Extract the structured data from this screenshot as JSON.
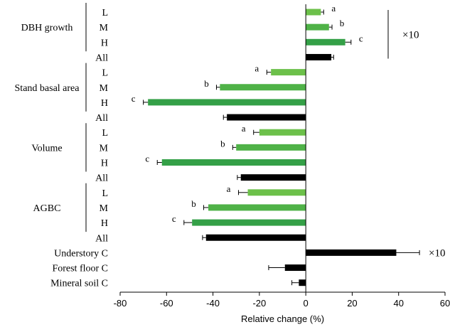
{
  "chart_data": {
    "type": "bar",
    "orientation": "horizontal",
    "xlabel": "Relative change (%)",
    "xlim": [
      -80,
      60
    ],
    "xticks": [
      -80,
      -60,
      -40,
      -20,
      0,
      20,
      40,
      60
    ],
    "groups": [
      {
        "label": "DBH growth",
        "rows": [
          0,
          1,
          2
        ]
      },
      {
        "label": "Stand basal area",
        "rows": [
          4,
          5,
          6
        ]
      },
      {
        "label": "Volume",
        "rows": [
          8,
          9,
          10
        ]
      },
      {
        "label": "AGBC",
        "rows": [
          12,
          13,
          14
        ]
      }
    ],
    "rows": [
      {
        "label": "L",
        "value": 6.5,
        "error": 1.2,
        "letter": "a",
        "level": "L"
      },
      {
        "label": "M",
        "value": 10,
        "error": 1.3,
        "letter": "b",
        "level": "M"
      },
      {
        "label": "H",
        "value": 17,
        "error": 2.5,
        "letter": "c",
        "level": "H"
      },
      {
        "label": "All",
        "value": 11,
        "error": 1.0,
        "letter": "",
        "level": "All"
      },
      {
        "label": "L",
        "value": -15,
        "error": 1.8,
        "letter": "a",
        "level": "L"
      },
      {
        "label": "M",
        "value": -37,
        "error": 1.5,
        "letter": "b",
        "level": "M"
      },
      {
        "label": "H",
        "value": -68,
        "error": 2.0,
        "letter": "c",
        "level": "H"
      },
      {
        "label": "All",
        "value": -34,
        "error": 1.5,
        "letter": "",
        "level": "All"
      },
      {
        "label": "L",
        "value": -20,
        "error": 2.5,
        "letter": "a",
        "level": "L"
      },
      {
        "label": "M",
        "value": -30,
        "error": 1.5,
        "letter": "b",
        "level": "M"
      },
      {
        "label": "H",
        "value": -62,
        "error": 2.0,
        "letter": "c",
        "level": "H"
      },
      {
        "label": "All",
        "value": -28,
        "error": 1.5,
        "letter": "",
        "level": "All"
      },
      {
        "label": "L",
        "value": -25,
        "error": 4.0,
        "letter": "a",
        "level": "L"
      },
      {
        "label": "M",
        "value": -42,
        "error": 2.0,
        "letter": "b",
        "level": "M"
      },
      {
        "label": "H",
        "value": -49,
        "error": 3.5,
        "letter": "c",
        "level": "H"
      },
      {
        "label": "All",
        "value": -43,
        "error": 1.5,
        "letter": "",
        "level": "All"
      },
      {
        "label": "Understory C",
        "value": 39,
        "error": 10,
        "letter": "",
        "level": "All"
      },
      {
        "label": "Forest floor C",
        "value": -9,
        "error": 7,
        "letter": "",
        "level": "All"
      },
      {
        "label": "Mineral soil C",
        "value": -3,
        "error": 3,
        "letter": "",
        "level": "All"
      }
    ],
    "annotations": [
      {
        "text": "×10",
        "rows": [
          0,
          3
        ]
      },
      {
        "text": "×10",
        "rows": [
          16,
          16
        ]
      }
    ],
    "colors": {
      "L": "#6cc04a",
      "M": "#4fb247",
      "H": "#34a047",
      "All": "#000000"
    }
  }
}
